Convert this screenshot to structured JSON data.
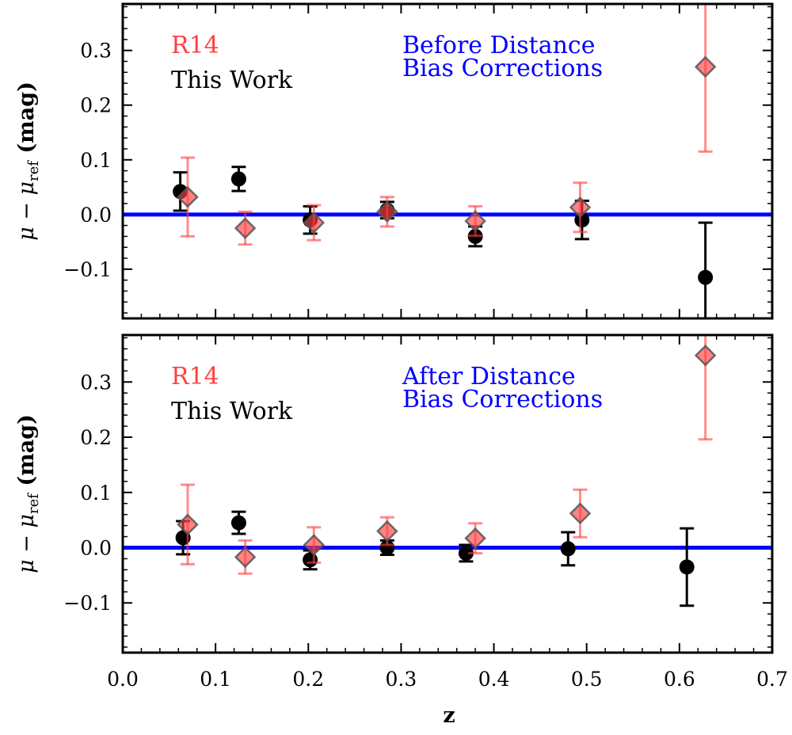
{
  "chart_data": {
    "type": "scatter",
    "xlabel": "z",
    "xlim": [
      0.0,
      0.7
    ],
    "xticks": [
      "0.0",
      "0.1",
      "0.2",
      "0.3",
      "0.4",
      "0.5",
      "0.6",
      "0.7"
    ],
    "legend": {
      "r14": "R14",
      "this_work": "This Work"
    },
    "colors": {
      "r14": "#ff4040",
      "this_work": "#000000",
      "reference": "#0000ff"
    },
    "panels": [
      {
        "annotation_line1": "Before Distance",
        "annotation_line2": "Bias Corrections",
        "ylabel": "μ − μ_ref (mag)",
        "ylabel_main": "μ − μ",
        "ylabel_sub": "ref",
        "ylabel_unit": " (mag)",
        "ylim": [
          -0.19,
          0.385
        ],
        "yticks": [
          "−0.1",
          "0.0",
          "0.1",
          "0.2",
          "0.3"
        ],
        "reference_value": 0.0,
        "series": [
          {
            "name": "R14",
            "points": [
              {
                "z": 0.07,
                "y": 0.032,
                "err": 0.072
              },
              {
                "z": 0.132,
                "y": -0.025,
                "err": 0.03
              },
              {
                "z": 0.206,
                "y": -0.015,
                "err": 0.032
              },
              {
                "z": 0.285,
                "y": 0.005,
                "err": 0.027
              },
              {
                "z": 0.38,
                "y": -0.012,
                "err": 0.027
              },
              {
                "z": 0.493,
                "y": 0.013,
                "err": 0.045
              },
              {
                "z": 0.628,
                "y": 0.27,
                "err": 0.155
              }
            ]
          },
          {
            "name": "This Work",
            "points": [
              {
                "z": 0.062,
                "y": 0.042,
                "err": 0.035
              },
              {
                "z": 0.125,
                "y": 0.065,
                "err": 0.022
              },
              {
                "z": 0.202,
                "y": -0.01,
                "err": 0.025
              },
              {
                "z": 0.285,
                "y": 0.008,
                "err": 0.015
              },
              {
                "z": 0.38,
                "y": -0.04,
                "err": 0.018
              },
              {
                "z": 0.495,
                "y": -0.01,
                "err": 0.035
              },
              {
                "z": 0.628,
                "y": -0.115,
                "err": 0.1
              }
            ]
          }
        ]
      },
      {
        "annotation_line1": "After Distance",
        "annotation_line2": "Bias Corrections",
        "ylabel": "μ − μ_ref (mag)",
        "ylabel_main": "μ − μ",
        "ylabel_sub": "ref",
        "ylabel_unit": " (mag)",
        "ylim": [
          -0.19,
          0.385
        ],
        "yticks": [
          "−0.1",
          "0.0",
          "0.1",
          "0.2",
          "0.3"
        ],
        "reference_value": 0.0,
        "series": [
          {
            "name": "R14",
            "points": [
              {
                "z": 0.07,
                "y": 0.042,
                "err": 0.072
              },
              {
                "z": 0.132,
                "y": -0.017,
                "err": 0.03
              },
              {
                "z": 0.206,
                "y": 0.005,
                "err": 0.032
              },
              {
                "z": 0.285,
                "y": 0.03,
                "err": 0.025
              },
              {
                "z": 0.38,
                "y": 0.017,
                "err": 0.027
              },
              {
                "z": 0.493,
                "y": 0.062,
                "err": 0.043
              },
              {
                "z": 0.628,
                "y": 0.348,
                "err": 0.152
              }
            ]
          },
          {
            "name": "This Work",
            "points": [
              {
                "z": 0.065,
                "y": 0.018,
                "err": 0.03
              },
              {
                "z": 0.125,
                "y": 0.045,
                "err": 0.02
              },
              {
                "z": 0.202,
                "y": -0.022,
                "err": 0.017
              },
              {
                "z": 0.285,
                "y": 0.0,
                "err": 0.013
              },
              {
                "z": 0.37,
                "y": -0.01,
                "err": 0.015
              },
              {
                "z": 0.48,
                "y": -0.002,
                "err": 0.03
              },
              {
                "z": 0.608,
                "y": -0.035,
                "err": 0.07
              }
            ]
          }
        ]
      }
    ]
  }
}
